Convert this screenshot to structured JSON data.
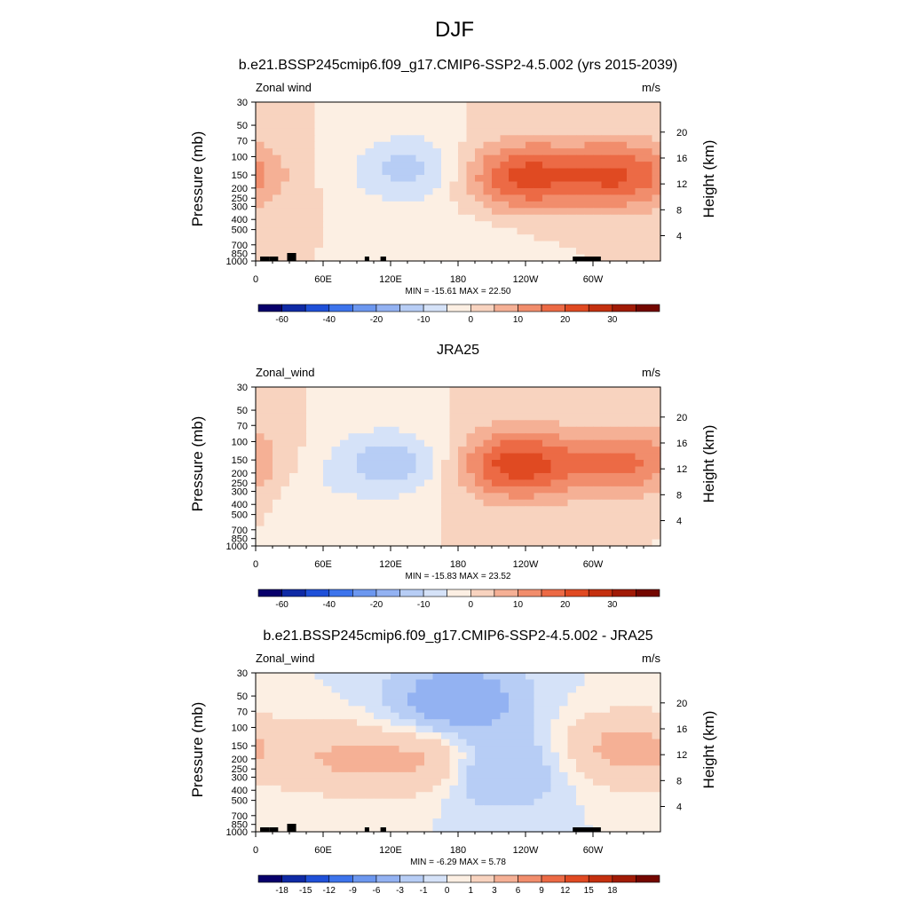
{
  "figure": {
    "main_title": "DJF"
  },
  "chart_data": [
    {
      "type": "heatmap",
      "title": "b.e21.BSSP245cmip6.f09_g17.CMIP6-SSP2-4.5.002 (yrs 2015-2039)",
      "field_label": "Zonal wind",
      "units": "m/s",
      "xlabel": "",
      "ylabel": "Pressure (mb)",
      "ylabel_right": "Height (km)",
      "x_ticks": [
        "0",
        "60E",
        "120E",
        "180",
        "120W",
        "60W"
      ],
      "y_ticks": [
        "30",
        "50",
        "70",
        "100",
        "150",
        "200",
        "250",
        "300",
        "400",
        "500",
        "700",
        "850",
        "1000"
      ],
      "y_right_ticks": [
        "20",
        "16",
        "12",
        "8",
        "4"
      ],
      "stats_text": "MIN = -15.61  MAX =  22.50",
      "min": -15.61,
      "max": 22.5,
      "colorbar_labels": [
        "-60",
        "-40",
        "-20",
        "-10",
        "0",
        "10",
        "20",
        "30"
      ],
      "contour_levels": [
        -70,
        -60,
        -50,
        -40,
        -30,
        -20,
        -15,
        -10,
        -5,
        0,
        5,
        10,
        15,
        20,
        25,
        30,
        35
      ],
      "features": [
        {
          "lon": 137,
          "p": 130,
          "value": -12
        },
        {
          "lon": 235,
          "p": 155,
          "value": 21
        },
        {
          "lon": 324,
          "p": 150,
          "value": 20
        },
        {
          "lon": 190,
          "p": 700,
          "value": -4
        }
      ],
      "topography": true
    },
    {
      "type": "heatmap",
      "title": "JRA25",
      "field_label": "Zonal_wind",
      "units": "m/s",
      "xlabel": "",
      "ylabel": "Pressure (mb)",
      "ylabel_right": "Height (km)",
      "x_ticks": [
        "0",
        "60E",
        "120E",
        "180",
        "120W",
        "60W"
      ],
      "y_ticks": [
        "30",
        "50",
        "70",
        "100",
        "150",
        "200",
        "250",
        "300",
        "400",
        "500",
        "700",
        "850",
        "1000"
      ],
      "y_right_ticks": [
        "20",
        "16",
        "12",
        "8",
        "4"
      ],
      "stats_text": "MIN = -15.83  MAX =  23.52",
      "min": -15.83,
      "max": 23.52,
      "colorbar_labels": [
        "-60",
        "-40",
        "-20",
        "-10",
        "0",
        "10",
        "20",
        "30"
      ],
      "contour_levels": [
        -70,
        -60,
        -50,
        -40,
        -30,
        -20,
        -15,
        -10,
        -5,
        0,
        5,
        10,
        15,
        20,
        25,
        30,
        35
      ],
      "features": [
        {
          "lon": 120,
          "p": 160,
          "value": -13
        },
        {
          "lon": 232,
          "p": 165,
          "value": 23
        },
        {
          "lon": 330,
          "p": 160,
          "value": 16
        },
        {
          "lon": 40,
          "p": 250,
          "value": -3
        }
      ],
      "topography": false
    },
    {
      "type": "heatmap",
      "title": "b.e21.BSSP245cmip6.f09_g17.CMIP6-SSP2-4.5.002 - JRA25",
      "field_label": "Zonal_wind",
      "units": "m/s",
      "xlabel": "",
      "ylabel": "Pressure (mb)",
      "ylabel_right": "Height (km)",
      "x_ticks": [
        "0",
        "60E",
        "120E",
        "180",
        "120W",
        "60W"
      ],
      "y_ticks": [
        "30",
        "50",
        "70",
        "100",
        "150",
        "200",
        "250",
        "300",
        "400",
        "500",
        "700",
        "850",
        "1000"
      ],
      "y_right_ticks": [
        "20",
        "16",
        "12",
        "8",
        "4"
      ],
      "stats_text": "MIN = -6.29  MAX =  5.78",
      "min": -6.29,
      "max": 5.78,
      "colorbar_labels": [
        "-18",
        "-15",
        "-12",
        "-9",
        "-6",
        "-3",
        "-1",
        "0",
        "1",
        "3",
        "6",
        "9",
        "12",
        "15",
        "18"
      ],
      "contour_levels": [
        -21,
        -18,
        -15,
        -12,
        -9,
        -6,
        -3,
        -1,
        0,
        1,
        3,
        6,
        9,
        12,
        15,
        18,
        21
      ],
      "features": [
        {
          "lon": 180,
          "p": 56,
          "value": -6
        },
        {
          "lon": 210,
          "p": 250,
          "value": -4
        },
        {
          "lon": 160,
          "p": 200,
          "value": 4
        },
        {
          "lon": 75,
          "p": 200,
          "value": 3
        },
        {
          "lon": 330,
          "p": 160,
          "value": 4
        }
      ],
      "topography": true
    }
  ],
  "palette": [
    "#08006b",
    "#0f2aa5",
    "#1f50d8",
    "#3d74ec",
    "#6c97ef",
    "#93b2f2",
    "#b7cdf5",
    "#d5e2f8",
    "#fcefe3",
    "#f8d3bf",
    "#f5b095",
    "#f18d6c",
    "#ec6a45",
    "#e04a22",
    "#c4300f",
    "#a11b06",
    "#740700"
  ]
}
